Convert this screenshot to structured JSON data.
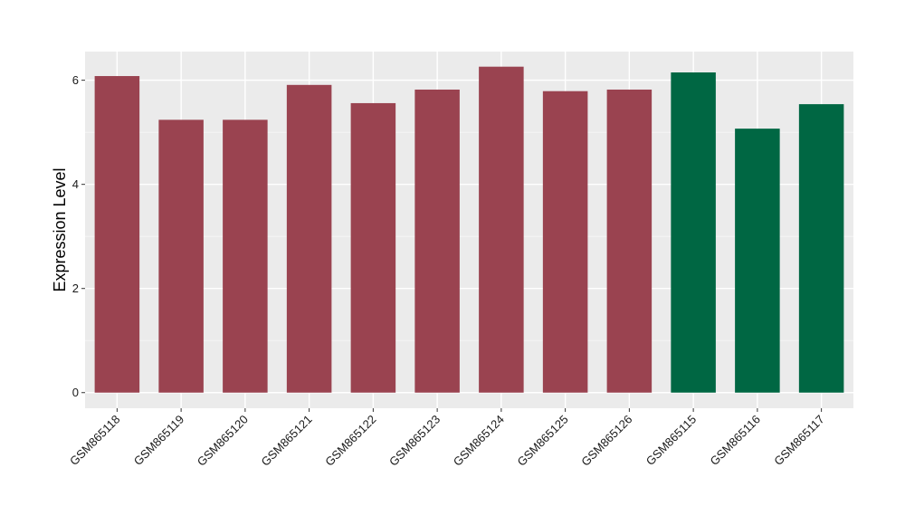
{
  "chart_data": {
    "type": "bar",
    "title": "",
    "xlabel": "",
    "ylabel": "Expression Level",
    "ylim": [
      -0.3,
      6.55
    ],
    "yticks": [
      0,
      2,
      4,
      6
    ],
    "grid": true,
    "legend": "none",
    "categories": [
      "GSM865118",
      "GSM865119",
      "GSM865120",
      "GSM865121",
      "GSM865122",
      "GSM865123",
      "GSM865124",
      "GSM865125",
      "GSM865126",
      "GSM865115",
      "GSM865116",
      "GSM865117"
    ],
    "values": [
      6.08,
      5.24,
      5.24,
      5.91,
      5.56,
      5.82,
      6.26,
      5.79,
      5.82,
      6.15,
      5.07,
      5.54
    ],
    "bar_colors": [
      "#9a4350",
      "#9a4350",
      "#9a4350",
      "#9a4350",
      "#9a4350",
      "#9a4350",
      "#9a4350",
      "#9a4350",
      "#9a4350",
      "#006743",
      "#006743",
      "#006743"
    ]
  }
}
